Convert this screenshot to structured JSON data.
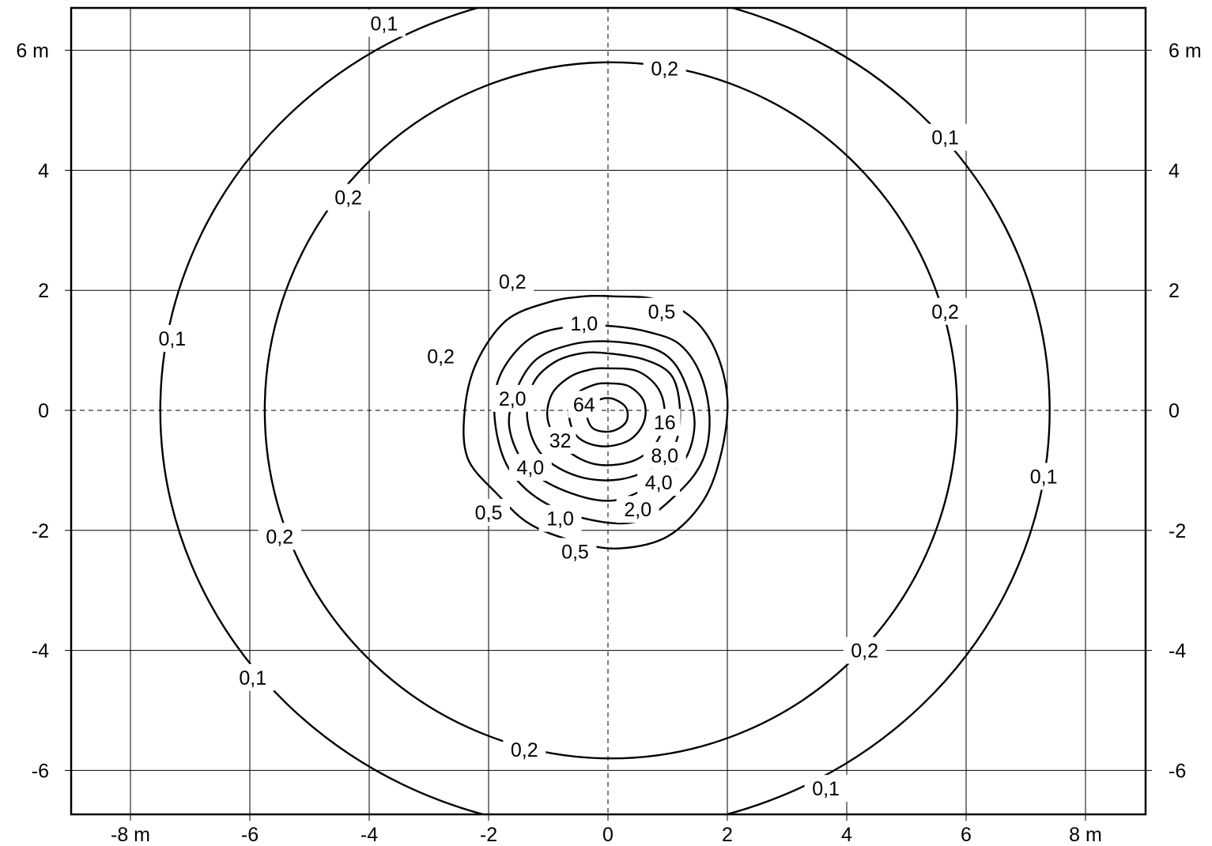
{
  "chart_data": {
    "type": "contour",
    "title": "",
    "xlabel": "",
    "ylabel": "",
    "xlim": [
      -9,
      9
    ],
    "ylim": [
      -6.75,
      6.7
    ],
    "grid": true,
    "x_ticks": [
      {
        "value": -8,
        "label": "-8 m"
      },
      {
        "value": -6,
        "label": "-6"
      },
      {
        "value": -4,
        "label": "-4"
      },
      {
        "value": -2,
        "label": "-2"
      },
      {
        "value": 0,
        "label": "0"
      },
      {
        "value": 2,
        "label": "2"
      },
      {
        "value": 4,
        "label": "4"
      },
      {
        "value": 6,
        "label": "6"
      },
      {
        "value": 8,
        "label": "8 m"
      }
    ],
    "y_ticks_left": [
      {
        "value": 6,
        "label": "6 m"
      },
      {
        "value": 4,
        "label": "4"
      },
      {
        "value": 2,
        "label": "2"
      },
      {
        "value": 0,
        "label": "0"
      },
      {
        "value": -2,
        "label": "-2"
      },
      {
        "value": -4,
        "label": "-4"
      },
      {
        "value": -6,
        "label": "-6"
      }
    ],
    "y_ticks_right": [
      {
        "value": 6,
        "label": "6 m"
      },
      {
        "value": 4,
        "label": "4"
      },
      {
        "value": 2,
        "label": "2"
      },
      {
        "value": 0,
        "label": "0"
      },
      {
        "value": -2,
        "label": "-2"
      },
      {
        "value": -4,
        "label": "-4"
      },
      {
        "value": -6,
        "label": "-6"
      }
    ],
    "contours": [
      {
        "level": "0,1",
        "shape": "ellipse",
        "cx": -0.05,
        "cy": 0,
        "rx": 7.45,
        "ry": 7.0
      },
      {
        "level": "0,2",
        "shape": "ellipse",
        "cx": 0.05,
        "cy": 0,
        "rx": 5.8,
        "ry": 5.8
      },
      {
        "level": "0,5",
        "shape": "path",
        "points": [
          [
            0.1,
            1.9
          ],
          [
            0.8,
            1.85
          ],
          [
            1.4,
            1.55
          ],
          [
            1.8,
            1.0
          ],
          [
            2.0,
            0.2
          ],
          [
            1.9,
            -0.7
          ],
          [
            1.6,
            -1.5
          ],
          [
            1.0,
            -2.1
          ],
          [
            0.2,
            -2.3
          ],
          [
            -0.5,
            -2.2
          ],
          [
            -1.3,
            -1.9
          ],
          [
            -1.85,
            -1.4
          ],
          [
            -2.35,
            -0.8
          ],
          [
            -2.4,
            0.0
          ],
          [
            -2.2,
            0.8
          ],
          [
            -1.7,
            1.5
          ],
          [
            -1.0,
            1.8
          ],
          [
            -0.4,
            1.9
          ]
        ]
      },
      {
        "level": "1,0",
        "shape": "path",
        "points": [
          [
            0.1,
            1.4
          ],
          [
            0.7,
            1.3
          ],
          [
            1.2,
            1.1
          ],
          [
            1.55,
            0.6
          ],
          [
            1.7,
            -0.1
          ],
          [
            1.6,
            -0.8
          ],
          [
            1.2,
            -1.35
          ],
          [
            0.5,
            -1.85
          ],
          [
            -0.4,
            -1.8
          ],
          [
            -1.2,
            -1.45
          ],
          [
            -1.7,
            -0.9
          ],
          [
            -1.9,
            -0.1
          ],
          [
            -1.8,
            0.6
          ],
          [
            -1.3,
            1.2
          ],
          [
            -0.6,
            1.4
          ]
        ]
      },
      {
        "level": "2,0",
        "shape": "path",
        "points": [
          [
            0.0,
            1.15
          ],
          [
            0.7,
            1.05
          ],
          [
            1.1,
            0.8
          ],
          [
            1.35,
            0.3
          ],
          [
            1.45,
            -0.25
          ],
          [
            1.3,
            -0.8
          ],
          [
            0.9,
            -1.15
          ],
          [
            0.1,
            -1.5
          ],
          [
            -0.7,
            -1.35
          ],
          [
            -1.35,
            -0.95
          ],
          [
            -1.65,
            -0.3
          ],
          [
            -1.55,
            0.3
          ],
          [
            -1.2,
            0.85
          ],
          [
            -0.6,
            1.1
          ]
        ]
      },
      {
        "level": "4,0",
        "shape": "path",
        "points": [
          [
            0.0,
            0.95
          ],
          [
            0.6,
            0.85
          ],
          [
            1.05,
            0.6
          ],
          [
            1.2,
            0.1
          ],
          [
            1.15,
            -0.5
          ],
          [
            0.85,
            -0.9
          ],
          [
            0.2,
            -1.15
          ],
          [
            -0.5,
            -1.1
          ],
          [
            -1.1,
            -0.75
          ],
          [
            -1.35,
            -0.15
          ],
          [
            -1.25,
            0.45
          ],
          [
            -0.9,
            0.8
          ],
          [
            -0.45,
            0.95
          ]
        ]
      },
      {
        "level": "8,0",
        "shape": "path",
        "points": [
          [
            0.0,
            0.7
          ],
          [
            0.5,
            0.65
          ],
          [
            0.85,
            0.35
          ],
          [
            0.95,
            -0.1
          ],
          [
            0.8,
            -0.55
          ],
          [
            0.4,
            -0.85
          ],
          [
            -0.2,
            -0.9
          ],
          [
            -0.7,
            -0.65
          ],
          [
            -1.0,
            -0.2
          ],
          [
            -0.95,
            0.25
          ],
          [
            -0.65,
            0.55
          ],
          [
            -0.3,
            0.68
          ]
        ]
      },
      {
        "level": "16",
        "shape": "path",
        "points": [
          [
            0.0,
            0.45
          ],
          [
            0.35,
            0.4
          ],
          [
            0.6,
            0.15
          ],
          [
            0.6,
            -0.2
          ],
          [
            0.35,
            -0.5
          ],
          [
            -0.1,
            -0.6
          ],
          [
            -0.5,
            -0.45
          ],
          [
            -0.65,
            -0.1
          ],
          [
            -0.55,
            0.25
          ],
          [
            -0.25,
            0.42
          ]
        ]
      },
      {
        "level": "32",
        "shape": "path",
        "points": [
          [
            0.05,
            0.2
          ],
          [
            0.3,
            0.05
          ],
          [
            0.3,
            -0.2
          ],
          [
            0.05,
            -0.35
          ],
          [
            -0.25,
            -0.3
          ],
          [
            -0.35,
            -0.05
          ],
          [
            -0.2,
            0.15
          ]
        ]
      },
      {
        "level": "64",
        "shape": "point",
        "x": -0.35,
        "y": 0.1
      }
    ],
    "contour_labels": [
      {
        "text": "0,1",
        "x": -3.75,
        "y": 6.45,
        "gap": true
      },
      {
        "text": "0,1",
        "x": 5.65,
        "y": 4.55,
        "gap": true
      },
      {
        "text": "0,1",
        "x": -7.3,
        "y": 1.2,
        "gap": true
      },
      {
        "text": "0,1",
        "x": 7.3,
        "y": -1.1,
        "gap": true
      },
      {
        "text": "0,1",
        "x": -5.95,
        "y": -4.45,
        "gap": true
      },
      {
        "text": "0,1",
        "x": 3.65,
        "y": -6.3,
        "gap": true
      },
      {
        "text": "0,2",
        "x": 0.95,
        "y": 5.7,
        "gap": true
      },
      {
        "text": "0,2",
        "x": -4.35,
        "y": 3.55,
        "gap": true
      },
      {
        "text": "0,2",
        "x": 5.65,
        "y": 1.65,
        "gap": true
      },
      {
        "text": "0,2",
        "x": -1.6,
        "y": 2.15,
        "gap": true
      },
      {
        "text": "0,2",
        "x": -2.8,
        "y": 0.9,
        "gap": false
      },
      {
        "text": "0,2",
        "x": -5.5,
        "y": -2.1,
        "gap": true
      },
      {
        "text": "0,2",
        "x": 4.3,
        "y": -4.0,
        "gap": true
      },
      {
        "text": "0,2",
        "x": -1.4,
        "y": -5.65,
        "gap": true
      },
      {
        "text": "0,5",
        "x": 0.9,
        "y": 1.65,
        "gap": true
      },
      {
        "text": "0,5",
        "x": -2.0,
        "y": -1.7,
        "gap": true
      },
      {
        "text": "0,5",
        "x": -0.55,
        "y": -2.35,
        "gap": true
      },
      {
        "text": "1,0",
        "x": -0.4,
        "y": 1.45,
        "gap": true
      },
      {
        "text": "1,0",
        "x": -0.8,
        "y": -1.8,
        "gap": true
      },
      {
        "text": "2,0",
        "x": -1.6,
        "y": 0.2,
        "gap": true
      },
      {
        "text": "2,0",
        "x": 0.5,
        "y": -1.65,
        "gap": true
      },
      {
        "text": "4,0",
        "x": -1.3,
        "y": -0.95,
        "gap": true
      },
      {
        "text": "4,0",
        "x": 0.85,
        "y": -1.2,
        "gap": true
      },
      {
        "text": "8,0",
        "x": 0.95,
        "y": -0.75,
        "gap": true
      },
      {
        "text": "16",
        "x": 0.95,
        "y": -0.2,
        "gap": true
      },
      {
        "text": "32",
        "x": -0.8,
        "y": -0.5,
        "gap": true
      },
      {
        "text": "64",
        "x": -0.4,
        "y": 0.1,
        "gap": true
      }
    ]
  }
}
